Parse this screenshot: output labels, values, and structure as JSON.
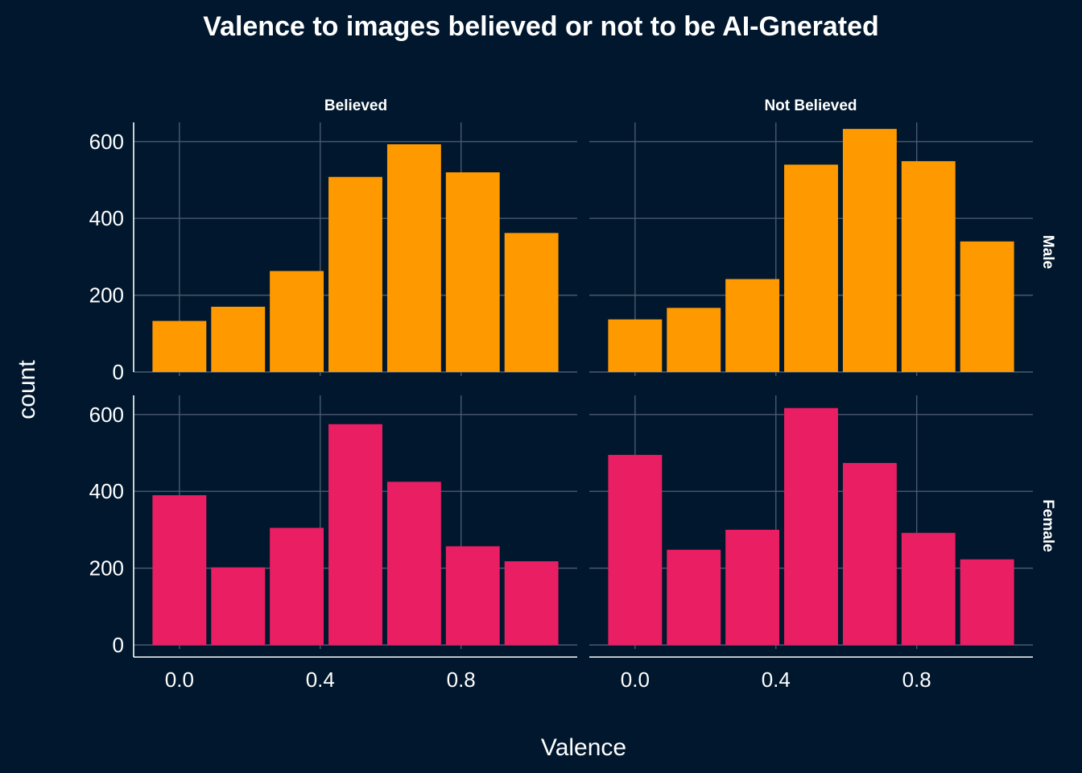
{
  "chart_data": {
    "type": "bar",
    "title": "Valence to images believed or not to be AI-Gnerated",
    "xlabel": "Valence",
    "ylabel": "count",
    "x_ticks": [
      "0.0",
      "0.4",
      "0.8"
    ],
    "x_tick_values": [
      0.0,
      0.4,
      0.8
    ],
    "y_ticks": [
      "0",
      "200",
      "400",
      "600"
    ],
    "y_tick_values": [
      0,
      200,
      400,
      600
    ],
    "bin_centers": [
      0.0,
      0.1667,
      0.3333,
      0.5,
      0.6667,
      0.8333,
      1.0
    ],
    "bin_width": 0.1667,
    "xlim": [
      -0.13,
      1.13
    ],
    "ylim": [
      0,
      650
    ],
    "grid": true,
    "facet_columns": [
      "Believed",
      "Not Believed"
    ],
    "facet_rows": [
      "Male",
      "Female"
    ],
    "colors": {
      "Male": "#ff9900",
      "Female": "#e91e63",
      "background": "#00172d",
      "grid": "#4a5a6e"
    },
    "panels": [
      {
        "column": "Believed",
        "row": "Male",
        "values": [
          133,
          170,
          263,
          508,
          593,
          520,
          362
        ]
      },
      {
        "column": "Not Believed",
        "row": "Male",
        "values": [
          137,
          167,
          242,
          540,
          633,
          549,
          340
        ]
      },
      {
        "column": "Believed",
        "row": "Female",
        "values": [
          390,
          202,
          305,
          575,
          425,
          257,
          218
        ]
      },
      {
        "column": "Not Believed",
        "row": "Female",
        "values": [
          495,
          248,
          300,
          617,
          474,
          292,
          223
        ]
      }
    ]
  }
}
